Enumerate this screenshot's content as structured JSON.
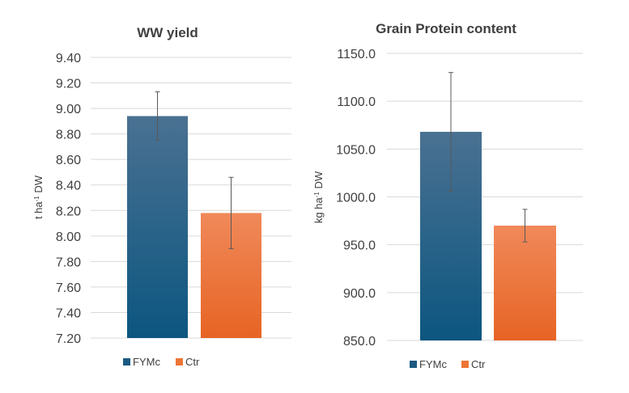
{
  "chart_data": [
    {
      "type": "bar",
      "title": "WW yield",
      "ylabel": "t ha-1 DW",
      "ylabel_unit": "t ha",
      "ylabel_exp": "-1",
      "ylabel_rest": " DW",
      "ylim": [
        7.2,
        9.4
      ],
      "ytick_step": 0.2,
      "ytick_decimals": 2,
      "ytick_labels": [
        "7.20",
        "7.40",
        "7.60",
        "7.80",
        "8.00",
        "8.20",
        "8.40",
        "8.60",
        "8.80",
        "9.00",
        "9.20",
        "9.40"
      ],
      "grid": true,
      "legend_position": "bottom",
      "series": [
        {
          "name": "FYMc",
          "value": 8.94,
          "error": 0.19,
          "color_top": "#4a7192",
          "color_bottom": "#0c5680"
        },
        {
          "name": "Ctr",
          "value": 8.18,
          "error": 0.28,
          "color_top": "#f0895a",
          "color_bottom": "#e76424"
        }
      ]
    },
    {
      "type": "bar",
      "title": "Grain Protein content",
      "ylabel": "kg ha-1 DW",
      "ylabel_unit": "kg ha",
      "ylabel_exp": "-1",
      "ylabel_rest": " DW",
      "ylim": [
        850.0,
        1150.0
      ],
      "ytick_step": 50,
      "ytick_decimals": 1,
      "ytick_labels": [
        "850.0",
        "900.0",
        "950.0",
        "1000.0",
        "1050.0",
        "1100.0",
        "1150.0"
      ],
      "grid": true,
      "legend_position": "bottom",
      "series": [
        {
          "name": "FYMc",
          "value": 1068,
          "error": 62,
          "color_top": "#4a7192",
          "color_bottom": "#0c5680"
        },
        {
          "name": "Ctr",
          "value": 970,
          "error": 17,
          "color_top": "#f0895a",
          "color_bottom": "#e76424"
        }
      ]
    }
  ]
}
